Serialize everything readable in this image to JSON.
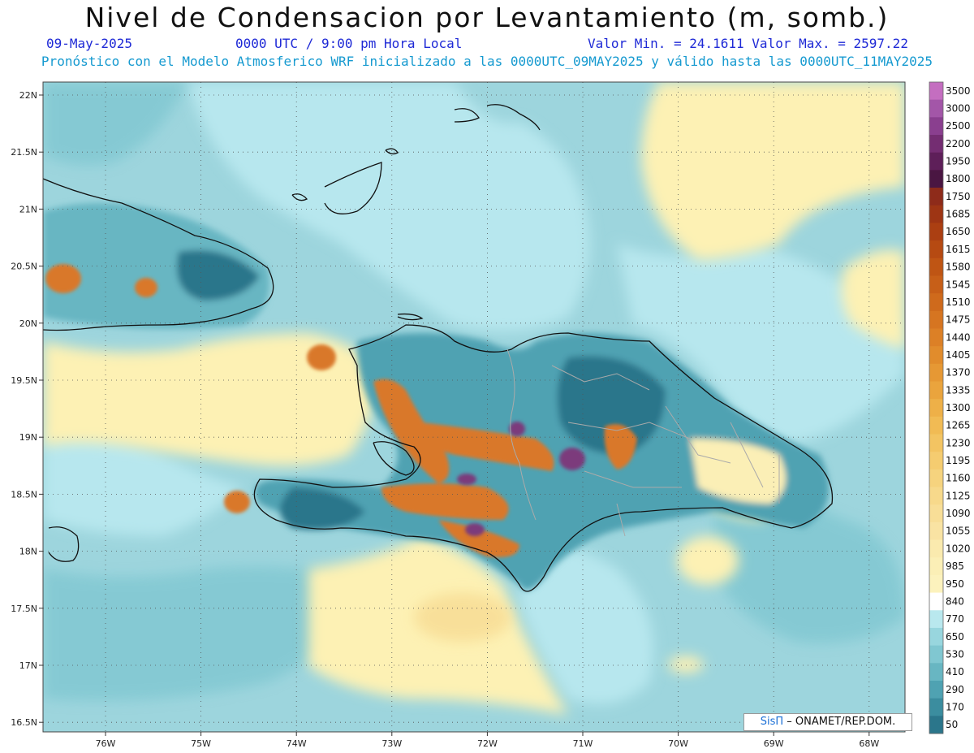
{
  "header": {
    "title": "Nivel de Condensacion por Levantamiento (m, somb.)",
    "date": "09-May-2025",
    "time": "0000 UTC / 9:00 pm Hora Local",
    "minmax": "Valor Min. = 24.1611  Valor Max. = 2597.22",
    "forecast": "Pronóstico con el Modelo Atmosferico WRF inicializado a las 0000UTC_09MAY2025 y válido hasta las  0000UTC_11MAY2025"
  },
  "axes": {
    "lat_labels": [
      "22N",
      "21.5N",
      "21N",
      "20.5N",
      "20N",
      "19.5N",
      "19N",
      "18.5N",
      "18N",
      "17.5N",
      "17N",
      "16.5N"
    ],
    "lon_labels": [
      "76W",
      "75W",
      "74W",
      "73W",
      "72W",
      "71W",
      "70W",
      "69W",
      "68W"
    ]
  },
  "colorbar": {
    "labels": [
      "3500",
      "3000",
      "2500",
      "2200",
      "1950",
      "1800",
      "1750",
      "1685",
      "1650",
      "1615",
      "1580",
      "1545",
      "1510",
      "1475",
      "1440",
      "1405",
      "1370",
      "1335",
      "1300",
      "1265",
      "1230",
      "1195",
      "1160",
      "1125",
      "1090",
      "1055",
      "1020",
      "985",
      "950",
      "840",
      "770",
      "650",
      "530",
      "410",
      "290",
      "170",
      "50"
    ],
    "colors": [
      "#c46ec0",
      "#a356a8",
      "#8a3f8f",
      "#742d72",
      "#5e1f59",
      "#4a1642",
      "#8e2b1a",
      "#9e3514",
      "#ab3f12",
      "#b64a12",
      "#bf5514",
      "#c75f18",
      "#cf6a1c",
      "#d67521",
      "#dc8026",
      "#e18c2c",
      "#e69834",
      "#eaa43d",
      "#eeb048",
      "#f1bb54",
      "#f3c462",
      "#f5cc70",
      "#f6d37e",
      "#f7d98b",
      "#f8de97",
      "#f9e3a3",
      "#faeaae",
      "#fbefb6",
      "#fcf2bd",
      "#ffffff",
      "#b9e8ee",
      "#98d6de",
      "#80c7d1",
      "#68b6c2",
      "#4fa2b2",
      "#3b8d9f",
      "#2b768b"
    ]
  },
  "credit": {
    "brand": "SisΠ",
    "text": " – ONAMET/REP.DOM."
  },
  "colors": {
    "sea": "#9dd5dd",
    "shallow": "#b7e7ee",
    "land_dark": "#3f8ea0",
    "yellow": "#fdf1b4",
    "orange": "#d9782a",
    "purple": "#7b3a7c"
  }
}
